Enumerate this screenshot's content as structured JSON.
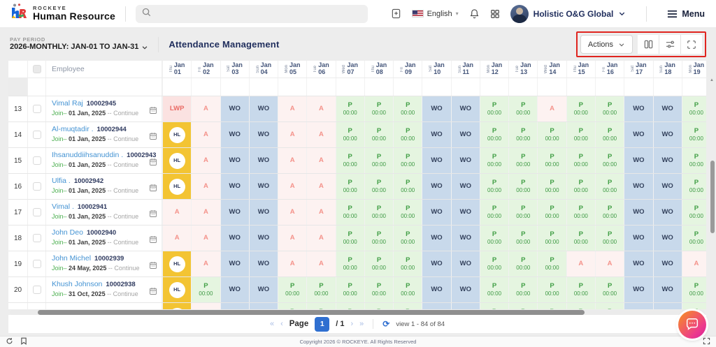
{
  "topbar": {
    "brand_top": "ROCKEYE",
    "brand_bottom": "Human Resource",
    "search_placeholder": "",
    "language": "English",
    "company": "Holistic O&G Global",
    "menu_label": "Menu"
  },
  "subbar": {
    "pay_period_label": "PAY PERIOD",
    "pay_period_value": "2026-MONTHLY: JAN-01 TO JAN-31",
    "page_title": "Attendance Management",
    "actions_label": "Actions"
  },
  "table": {
    "employee_header": "Employee",
    "p_time": "00:00",
    "dates": [
      {
        "dow": "Thu",
        "month": "Jan",
        "day": "01"
      },
      {
        "dow": "Fri",
        "month": "Jan",
        "day": "02"
      },
      {
        "dow": "Sat",
        "month": "Jan",
        "day": "03"
      },
      {
        "dow": "Sun",
        "month": "Jan",
        "day": "04"
      },
      {
        "dow": "Mon",
        "month": "Jan",
        "day": "05"
      },
      {
        "dow": "Tue",
        "month": "Jan",
        "day": "06"
      },
      {
        "dow": "Wed",
        "month": "Jan",
        "day": "07"
      },
      {
        "dow": "Thu",
        "month": "Jan",
        "day": "08"
      },
      {
        "dow": "Fri",
        "month": "Jan",
        "day": "09"
      },
      {
        "dow": "Sat",
        "month": "Jan",
        "day": "10"
      },
      {
        "dow": "Sun",
        "month": "Jan",
        "day": "11"
      },
      {
        "dow": "Mon",
        "month": "Jan",
        "day": "12"
      },
      {
        "dow": "Tue",
        "month": "Jan",
        "day": "13"
      },
      {
        "dow": "Wed",
        "month": "Jan",
        "day": "14"
      },
      {
        "dow": "Thu",
        "month": "Jan",
        "day": "15"
      },
      {
        "dow": "Fri",
        "month": "Jan",
        "day": "16"
      },
      {
        "dow": "Sat",
        "month": "Jan",
        "day": "17"
      },
      {
        "dow": "Sun",
        "month": "Jan",
        "day": "18"
      },
      {
        "dow": "Mon",
        "month": "Jan",
        "day": "19"
      }
    ],
    "rows": [
      {
        "num": "13",
        "name": "Vimal Raj",
        "emp_id": "10002945",
        "join_label": "Join–",
        "join_date": "01 Jan, 2025",
        "join_tail": "-- Continue",
        "cells": [
          "LWP",
          "A",
          "WO",
          "WO",
          "A",
          "A",
          "P",
          "P",
          "P",
          "WO",
          "WO",
          "P",
          "P",
          "A",
          "P",
          "P",
          "WO",
          "WO",
          "P"
        ]
      },
      {
        "num": "14",
        "name": "Al-muqtadir .",
        "emp_id": "10002944",
        "join_label": "Join–",
        "join_date": "01 Jan, 2025",
        "join_tail": "-- Continue",
        "cells": [
          "HL",
          "A",
          "WO",
          "WO",
          "A",
          "A",
          "P",
          "P",
          "P",
          "WO",
          "WO",
          "P",
          "P",
          "P",
          "P",
          "P",
          "WO",
          "WO",
          "P"
        ]
      },
      {
        "num": "15",
        "name": "Ihsanuddiihsanuddin .",
        "emp_id": "10002943",
        "join_label": "Join–",
        "join_date": "01 Jan, 2025",
        "join_tail": "-- Continue",
        "cells": [
          "HL",
          "A",
          "WO",
          "WO",
          "A",
          "A",
          "P",
          "P",
          "P",
          "WO",
          "WO",
          "P",
          "P",
          "P",
          "P",
          "P",
          "WO",
          "WO",
          "P"
        ]
      },
      {
        "num": "16",
        "name": "Ulfia .",
        "emp_id": "10002942",
        "join_label": "Join–",
        "join_date": "01 Jan, 2025",
        "join_tail": "-- Continue",
        "cells": [
          "HL",
          "A",
          "WO",
          "WO",
          "A",
          "A",
          "P",
          "P",
          "P",
          "WO",
          "WO",
          "P",
          "P",
          "P",
          "P",
          "P",
          "WO",
          "WO",
          "P"
        ]
      },
      {
        "num": "17",
        "name": "Vimal .",
        "emp_id": "10002941",
        "join_label": "Join–",
        "join_date": "01 Jan, 2025",
        "join_tail": "-- Continue",
        "cells": [
          "A",
          "A",
          "WO",
          "WO",
          "A",
          "A",
          "P",
          "P",
          "P",
          "WO",
          "WO",
          "P",
          "P",
          "P",
          "P",
          "P",
          "WO",
          "WO",
          "P"
        ]
      },
      {
        "num": "18",
        "name": "John Deo",
        "emp_id": "10002940",
        "join_label": "Join–",
        "join_date": "01 Jan, 2025",
        "join_tail": "-- Continue",
        "cells": [
          "A",
          "A",
          "WO",
          "WO",
          "A",
          "A",
          "P",
          "P",
          "P",
          "WO",
          "WO",
          "P",
          "P",
          "P",
          "P",
          "P",
          "WO",
          "WO",
          "P"
        ]
      },
      {
        "num": "19",
        "name": "John Michel",
        "emp_id": "10002939",
        "join_label": "Join–",
        "join_date": "24 May, 2025",
        "join_tail": "-- Continue",
        "cells": [
          "HL",
          "A",
          "WO",
          "WO",
          "A",
          "A",
          "P",
          "P",
          "P",
          "WO",
          "WO",
          "P",
          "P",
          "P",
          "A",
          "A",
          "WO",
          "WO",
          "A"
        ]
      },
      {
        "num": "20",
        "name": "Khush Johnson",
        "emp_id": "10002938",
        "join_label": "Join–",
        "join_date": "31 Oct, 2025",
        "join_tail": "-- Continue",
        "cells": [
          "HL",
          "P",
          "WO",
          "WO",
          "P",
          "P",
          "P",
          "P",
          "P",
          "WO",
          "WO",
          "P",
          "P",
          "P",
          "P",
          "P",
          "WO",
          "WO",
          "P"
        ]
      }
    ],
    "cut_row_cells": [
      "HL",
      "A",
      "WO",
      "WO",
      "P",
      "P",
      "P",
      "P",
      "P",
      "WO",
      "WO",
      "P",
      "P",
      "P",
      "P",
      "P",
      "WO",
      "WO",
      "P"
    ]
  },
  "pagination": {
    "first": "«",
    "prev": "‹",
    "page_label": "Page",
    "current": "1",
    "total": "/ 1",
    "next": "›",
    "last": "»",
    "refresh": "⟳",
    "view_text": "view 1 - 84 of 84"
  },
  "footer": {
    "copyright": "Copyright 2026 © ROCKEYE. All Rights Reserved"
  },
  "colors": {
    "accent_blue": "#2f6fd0",
    "wo_bg": "#c8d9eb",
    "p_bg": "#e5f5e0",
    "a_bg": "#fdf2f1",
    "lwp_bg": "#fbe2e1",
    "hl_bg": "#f3c433",
    "annotation_red": "#e0241f"
  }
}
